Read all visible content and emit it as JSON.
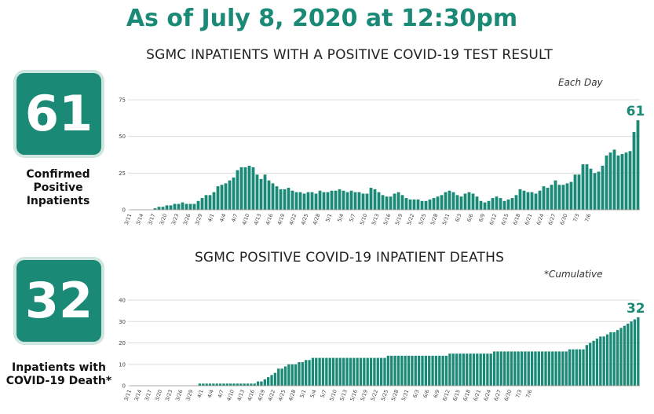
{
  "header": {
    "title": "As of July 8, 2020 at 12:30pm"
  },
  "panels": [
    {
      "badge_value": "61",
      "badge_label": "Confirmed Positive Inpatients",
      "title": "SGMC INPATIENTS WITH A POSITIVE COVID-19 TEST RESULT",
      "note": "Each Day",
      "end_label": "61"
    },
    {
      "badge_value": "32",
      "badge_label": "Inpatients with COVID-19 Death*",
      "title": "SGMC POSITIVE COVID-19 INPATIENT DEATHS",
      "note": "*Cumulative",
      "end_label": "32"
    }
  ],
  "colors": {
    "accent": "#1a8a76",
    "bar": "#1a8a76",
    "grid": "#dddddd"
  },
  "chart_data": [
    {
      "type": "bar",
      "title": "SGMC INPATIENTS WITH A POSITIVE COVID-19 TEST RESULT",
      "start": "3/11",
      "xtick_labels": [
        "3/11",
        "3/14",
        "3/17",
        "3/20",
        "3/23",
        "3/26",
        "3/29",
        "4/1",
        "4/4",
        "4/7",
        "4/10",
        "4/13",
        "4/16",
        "4/19",
        "4/22",
        "4/25",
        "4/28",
        "5/1",
        "5/4",
        "5/7",
        "5/10",
        "5/13",
        "5/16",
        "5/19",
        "5/22",
        "5/25",
        "5/28",
        "5/31",
        "6/3",
        "6/6",
        "6/9",
        "6/12",
        "6/15",
        "6/18",
        "6/21",
        "6/24",
        "6/27",
        "6/30",
        "7/3",
        "7/6"
      ],
      "yticks": [
        0,
        25,
        50,
        75
      ],
      "ylim": [
        0,
        75
      ],
      "grid": true,
      "values": [
        0,
        0,
        0,
        0,
        0,
        0,
        1,
        2,
        2,
        3,
        3,
        4,
        4,
        5,
        4,
        4,
        4,
        6,
        8,
        10,
        10,
        12,
        16,
        17,
        18,
        20,
        22,
        27,
        29,
        29,
        30,
        29,
        24,
        21,
        24,
        20,
        18,
        16,
        14,
        14,
        15,
        13,
        12,
        12,
        11,
        12,
        12,
        11,
        13,
        12,
        12,
        13,
        13,
        14,
        13,
        12,
        13,
        12,
        12,
        11,
        11,
        15,
        14,
        12,
        10,
        9,
        9,
        11,
        12,
        10,
        8,
        7,
        7,
        7,
        6,
        6,
        7,
        8,
        9,
        10,
        12,
        13,
        12,
        10,
        9,
        11,
        12,
        11,
        9,
        6,
        5,
        6,
        8,
        9,
        8,
        6,
        7,
        8,
        10,
        14,
        13,
        12,
        12,
        11,
        13,
        16,
        15,
        17,
        20,
        17,
        17,
        18,
        19,
        24,
        24,
        31,
        31,
        28,
        25,
        26,
        30,
        37,
        39,
        41,
        37,
        38,
        39,
        40,
        53,
        61
      ]
    },
    {
      "type": "bar",
      "title": "SGMC POSITIVE COVID-19 INPATIENT DEATHS",
      "start": "3/11",
      "xtick_labels": [
        "3/11",
        "3/14",
        "3/17",
        "3/20",
        "3/23",
        "3/26",
        "3/29",
        "4/1",
        "4/4",
        "4/7",
        "4/10",
        "4/13",
        "4/16",
        "4/19",
        "4/22",
        "4/25",
        "4/28",
        "5/1",
        "5/4",
        "5/7",
        "5/10",
        "5/13",
        "5/16",
        "5/19",
        "5/22",
        "5/25",
        "5/28",
        "5/31",
        "6/3",
        "6/6",
        "6/9",
        "6/12",
        "6/15",
        "6/18",
        "6/21",
        "6/24",
        "6/27",
        "6/30",
        "7/3",
        "7/6"
      ],
      "yticks": [
        0,
        10,
        20,
        30,
        40
      ],
      "ylim": [
        0,
        40
      ],
      "grid": true,
      "values": [
        0,
        0,
        0,
        0,
        0,
        0,
        0,
        0,
        0,
        0,
        0,
        0,
        0,
        0,
        0,
        0,
        0,
        0,
        0,
        0,
        1,
        1,
        1,
        1,
        1,
        1,
        1,
        1,
        1,
        1,
        1,
        1,
        1,
        1,
        1,
        1,
        1,
        2,
        2,
        3,
        4,
        5,
        6,
        8,
        8,
        9,
        10,
        10,
        10,
        11,
        11,
        12,
        12,
        13,
        13,
        13,
        13,
        13,
        13,
        13,
        13,
        13,
        13,
        13,
        13,
        13,
        13,
        13,
        13,
        13,
        13,
        13,
        13,
        13,
        13,
        14,
        14,
        14,
        14,
        14,
        14,
        14,
        14,
        14,
        14,
        14,
        14,
        14,
        14,
        14,
        14,
        14,
        14,
        15,
        15,
        15,
        15,
        15,
        15,
        15,
        15,
        15,
        15,
        15,
        15,
        15,
        16,
        16,
        16,
        16,
        16,
        16,
        16,
        16,
        16,
        16,
        16,
        16,
        16,
        16,
        16,
        16,
        16,
        16,
        16,
        16,
        16,
        16,
        17,
        17,
        17,
        17,
        17,
        19,
        20,
        21,
        22,
        23,
        23,
        24,
        25,
        25,
        26,
        27,
        28,
        29,
        30,
        31,
        32
      ]
    }
  ]
}
